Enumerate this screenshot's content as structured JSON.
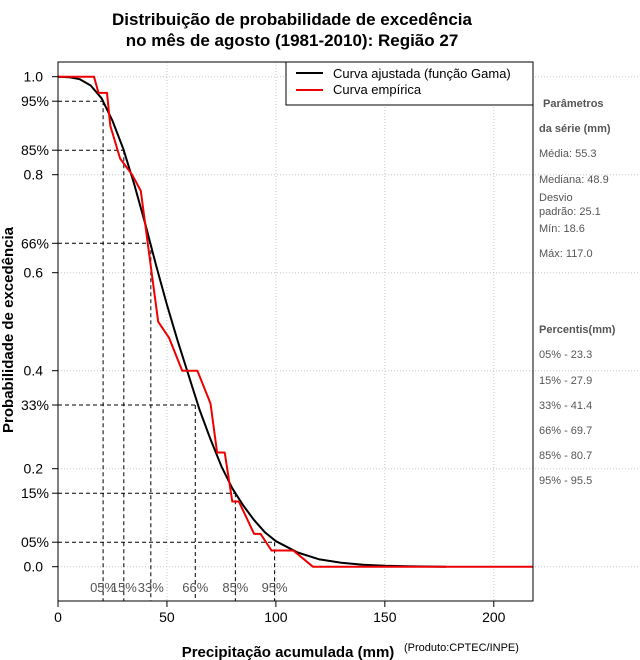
{
  "chart_data": {
    "type": "line",
    "title_lines": [
      "Distribuição de probabilidade de excedência",
      "no mês de agosto (1981-2010): Região 27"
    ],
    "xlabel": "Precipitação acumulada (mm)",
    "ylabel": "Probabilidade de excedência",
    "credit": "(Produto:CPTEC/INPE)",
    "xlim": [
      0,
      218
    ],
    "ylim": [
      -0.07,
      1.03
    ],
    "x_ticks": [
      0,
      50,
      100,
      150,
      200
    ],
    "y_ticks": [
      0.0,
      0.2,
      0.4,
      0.6,
      0.8,
      1.0
    ],
    "y_tick_labels": [
      "0.0",
      "0.2",
      "0.4",
      "0.6",
      "0.8",
      "1.0"
    ],
    "percentile_levels": [
      {
        "y": 0.95,
        "label": "95%"
      },
      {
        "y": 0.85,
        "label": "85%"
      },
      {
        "y": 0.66,
        "label": "66%"
      },
      {
        "y": 0.33,
        "label": "33%"
      },
      {
        "y": 0.15,
        "label": "15%"
      },
      {
        "y": 0.05,
        "label": "05%"
      }
    ],
    "percentile_markers": [
      {
        "x": 20.7,
        "y": 0.95,
        "label": "05%"
      },
      {
        "x": 30.2,
        "y": 0.85,
        "label": "15%"
      },
      {
        "x": 42.6,
        "y": 0.66,
        "label": "33%"
      },
      {
        "x": 63.0,
        "y": 0.33,
        "label": "66%"
      },
      {
        "x": 81.4,
        "y": 0.15,
        "label": "85%"
      },
      {
        "x": 99.4,
        "y": 0.05,
        "label": "95%"
      }
    ],
    "legend": [
      {
        "label": "Curva ajustada (função Gama)",
        "color": "#000000"
      },
      {
        "label": "Curva empírica",
        "color": "#ee0000"
      }
    ],
    "series": [
      {
        "name": "Curva ajustada (função Gama)",
        "color": "#000000",
        "x": [
          0,
          5,
          10,
          15,
          20,
          25,
          30,
          35,
          40,
          45,
          50,
          55,
          60,
          65,
          70,
          75,
          80,
          85,
          90,
          95,
          100,
          110,
          120,
          130,
          140,
          150,
          160,
          178
        ],
        "y": [
          1.0,
          0.999,
          0.995,
          0.982,
          0.956,
          0.91,
          0.852,
          0.78,
          0.7,
          0.615,
          0.535,
          0.46,
          0.39,
          0.32,
          0.26,
          0.205,
          0.16,
          0.125,
          0.095,
          0.07,
          0.052,
          0.029,
          0.015,
          0.008,
          0.004,
          0.002,
          0.001,
          0.0
        ]
      },
      {
        "name": "Curva empírica",
        "color": "#ee0000",
        "x": [
          0,
          16.5,
          18.6,
          22.5,
          24,
          28.5,
          34,
          38,
          41,
          46,
          51,
          57,
          64,
          70,
          73,
          76.5,
          80,
          83,
          86.5,
          90,
          93,
          98,
          102.5,
          108,
          117,
          218
        ],
        "y": [
          1.0,
          1.0,
          0.967,
          0.967,
          0.9,
          0.833,
          0.8,
          0.767,
          0.667,
          0.5,
          0.467,
          0.4,
          0.4,
          0.333,
          0.233,
          0.233,
          0.133,
          0.133,
          0.1,
          0.067,
          0.067,
          0.033,
          0.033,
          0.033,
          0.0,
          0.0
        ]
      }
    ]
  },
  "side_panel": {
    "params_heading_1": "Parâmetros",
    "params_heading_2": "da série (mm)",
    "media": "Média: 55.3",
    "mediana": "Mediana: 48.9",
    "desvio_1": "Desvio",
    "desvio_2": "padrão: 25.1",
    "min": "Mín: 18.6",
    "max": "Máx: 117.0",
    "percentis_heading": "Percentis(mm)",
    "percentis": [
      "05% - 23.3",
      "15% - 27.9",
      "33% - 41.4",
      "66% - 69.7",
      "85% - 80.7",
      "95% - 95.5"
    ]
  }
}
